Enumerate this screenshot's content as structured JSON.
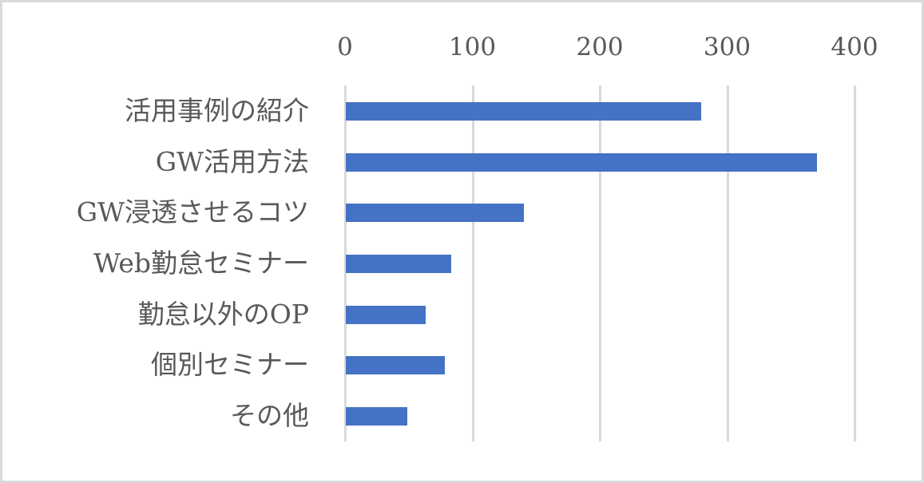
{
  "chart_data": {
    "type": "bar",
    "orientation": "horizontal",
    "title": "",
    "xlabel": "",
    "ylabel": "",
    "xlim": [
      0,
      400
    ],
    "x_ticks": [
      "0",
      "100",
      "200",
      "300",
      "400"
    ],
    "grid": true,
    "legend": "none",
    "categories": [
      "活用事例の紹介",
      "GW活用方法",
      "GW浸透させるコツ",
      "Web勤怠セミナー",
      "勤怠以外のOP",
      "個別セミナー",
      "その他"
    ],
    "values": [
      279,
      370,
      140,
      83,
      63,
      78,
      48
    ],
    "series": [
      {
        "name": "",
        "values": [
          279,
          370,
          140,
          83,
          63,
          78,
          48
        ],
        "color": "#4472c4"
      }
    ]
  },
  "colors": {
    "bar": "#4472c4",
    "grid": "#d9d9d9",
    "text": "#595959",
    "border": "#d9d9d9"
  }
}
